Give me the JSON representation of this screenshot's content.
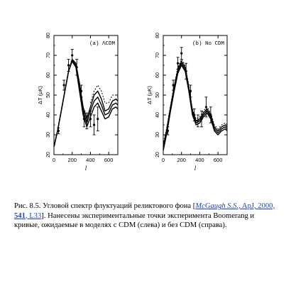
{
  "chart_data": [
    {
      "type": "line",
      "panel_label": "(a) ΛCDM",
      "xlabel": "l",
      "ylabel": "ΔT (μK)",
      "xlim": [
        0,
        700
      ],
      "ylim": [
        20,
        80
      ],
      "x_ticks": [
        "0",
        "200",
        "400",
        "600"
      ],
      "y_ticks": [
        "20",
        "30",
        "40",
        "50",
        "60",
        "70",
        "80"
      ],
      "series": [
        {
          "style": "solid",
          "x": [
            0,
            40,
            80,
            120,
            160,
            200,
            240,
            280,
            320,
            360,
            400,
            440,
            480,
            520,
            560,
            600,
            640,
            680,
            700
          ],
          "y": [
            24,
            32,
            42,
            52,
            62,
            68,
            66,
            56,
            44,
            38,
            44,
            50,
            52,
            48,
            42,
            43,
            47,
            48,
            47
          ]
        },
        {
          "style": "solid",
          "x": [
            0,
            40,
            80,
            120,
            160,
            200,
            240,
            280,
            320,
            360,
            400,
            440,
            480,
            520,
            560,
            600,
            640,
            680,
            700
          ],
          "y": [
            24,
            32,
            42,
            52,
            62,
            67.5,
            65,
            54,
            42,
            36,
            42,
            47,
            49,
            45,
            40,
            41,
            45,
            46,
            45
          ]
        },
        {
          "style": "solid",
          "x": [
            0,
            40,
            80,
            120,
            160,
            200,
            240,
            280,
            320,
            360,
            400,
            440,
            480,
            520,
            560,
            600,
            640,
            680,
            700
          ],
          "y": [
            24,
            32,
            42,
            52,
            62,
            67,
            64,
            52,
            40,
            34,
            39,
            44,
            46,
            42,
            38,
            39,
            43,
            44,
            43
          ]
        },
        {
          "style": "dashed",
          "x": [
            400,
            440,
            480,
            520,
            560,
            600,
            640,
            680,
            700
          ],
          "y": [
            46,
            52,
            55,
            52,
            46,
            46,
            50,
            50,
            49
          ]
        }
      ],
      "points": [
        {
          "x": 50,
          "y": 32,
          "err": 1.5
        },
        {
          "x": 110,
          "y": 55,
          "err": 2.5
        },
        {
          "x": 160,
          "y": 65,
          "err": 3
        },
        {
          "x": 200,
          "y": 70,
          "err": 3
        },
        {
          "x": 250,
          "y": 64,
          "err": 4
        },
        {
          "x": 300,
          "y": 52,
          "err": 3
        },
        {
          "x": 330,
          "y": 38,
          "err": 4
        },
        {
          "x": 360,
          "y": 37,
          "err": 4
        },
        {
          "x": 400,
          "y": 38,
          "err": 4
        },
        {
          "x": 440,
          "y": 35,
          "err": 5
        },
        {
          "x": 480,
          "y": 38,
          "err": 6
        }
      ]
    },
    {
      "type": "line",
      "panel_label": "(b) No CDM",
      "xlabel": "l",
      "ylabel": "ΔT (μK)",
      "xlim": [
        0,
        700
      ],
      "ylim": [
        20,
        80
      ],
      "x_ticks": [
        "0",
        "200",
        "400",
        "600"
      ],
      "y_ticks": [
        "20",
        "30",
        "40",
        "50",
        "60",
        "70",
        "80"
      ],
      "series": [
        {
          "style": "solid",
          "x": [
            0,
            40,
            80,
            120,
            160,
            200,
            240,
            280,
            320,
            360,
            400,
            440,
            480,
            520,
            560,
            600,
            640,
            680,
            700
          ],
          "y": [
            24,
            33,
            44,
            54,
            63,
            67,
            64,
            54,
            42,
            37,
            38,
            41,
            43,
            40,
            34,
            32,
            34,
            35,
            34
          ]
        },
        {
          "style": "solid",
          "x": [
            0,
            40,
            80,
            120,
            160,
            200,
            240,
            280,
            320,
            360,
            400,
            440,
            480,
            520,
            560,
            600,
            640,
            680,
            700
          ],
          "y": [
            23,
            32,
            43,
            53,
            62,
            66,
            63,
            53,
            41,
            36,
            37,
            40,
            42,
            39,
            33,
            31,
            33,
            34,
            33
          ]
        },
        {
          "style": "solid",
          "x": [
            0,
            40,
            80,
            120,
            160,
            200,
            240,
            280,
            320,
            360,
            400,
            440,
            480,
            520,
            560,
            600,
            640,
            680,
            700
          ],
          "y": [
            22,
            31,
            42,
            52,
            61,
            65,
            62,
            52,
            40,
            35,
            36,
            39,
            41,
            38,
            32,
            30,
            32,
            33,
            32
          ]
        },
        {
          "style": "dashed",
          "x": [
            0,
            40,
            80,
            120,
            160,
            200,
            240,
            280,
            320,
            360,
            400,
            440,
            480,
            520,
            560,
            600,
            640,
            680,
            700
          ],
          "y": [
            25,
            34,
            45,
            55,
            64,
            68,
            65,
            55,
            43,
            38,
            39,
            42,
            44,
            41,
            35,
            33,
            35,
            36,
            35
          ]
        }
      ],
      "points": [
        {
          "x": 50,
          "y": 32,
          "err": 2
        },
        {
          "x": 110,
          "y": 55,
          "err": 2.5
        },
        {
          "x": 160,
          "y": 66,
          "err": 3
        },
        {
          "x": 200,
          "y": 71,
          "err": 3
        },
        {
          "x": 250,
          "y": 62,
          "err": 4
        },
        {
          "x": 300,
          "y": 52,
          "err": 3
        },
        {
          "x": 340,
          "y": 40,
          "err": 3
        },
        {
          "x": 380,
          "y": 37,
          "err": 3
        },
        {
          "x": 420,
          "y": 38,
          "err": 4
        },
        {
          "x": 470,
          "y": 44,
          "err": 5
        },
        {
          "x": 520,
          "y": 40,
          "err": 4
        }
      ]
    }
  ],
  "caption": {
    "prefix": "Рис. 8.5. Угловой спектр флуктуаций реликтового фона [",
    "ref_author": "McGaugh S.S.,",
    "ref_journal": " ApJ, 2000, ",
    "ref_volume": "541",
    "ref_page": ", L33",
    "suffix": "]. Нанесены экспериментальные точки эксперимента Boomerang и кривые, ожидаемые в моделях с CDM (слева) и без CDM (справа)."
  }
}
